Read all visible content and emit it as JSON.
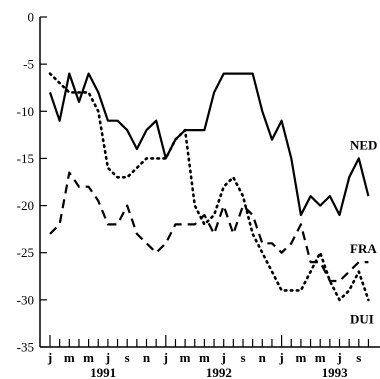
{
  "chart_data": {
    "type": "line",
    "title": "",
    "xlabel": "",
    "ylabel": "",
    "ylim": [
      -35,
      0
    ],
    "y_ticks": [
      0,
      -5,
      -10,
      -15,
      -20,
      -25,
      -30,
      -35
    ],
    "y_tick_labels": [
      "0",
      "-5",
      "-10",
      "-15",
      "-20",
      "-25",
      "-30",
      "-35"
    ],
    "month_labels": [
      "j",
      "m",
      "m",
      "j",
      "s",
      "n",
      "j",
      "m",
      "m",
      "j",
      "s",
      "n",
      "j",
      "m",
      "m",
      "j",
      "s"
    ],
    "year_labels": [
      "1991",
      "1992",
      "1993"
    ],
    "grid": false,
    "legend": "inline-right",
    "series": [
      {
        "name": "NED",
        "style": "solid",
        "color": "#000000",
        "values": [
          -8,
          -11,
          -6,
          -9,
          -6,
          -8,
          -11,
          -11,
          -12,
          -14,
          -12,
          -11,
          -15,
          -13,
          -12,
          -12,
          -12,
          -8,
          -6,
          -6,
          -6,
          -6,
          -10,
          -13,
          -11,
          -15,
          -21,
          -19,
          -20,
          -19,
          -21,
          -17,
          -15,
          -19
        ]
      },
      {
        "name": "FRA",
        "style": "dashed",
        "color": "#000000",
        "values": [
          -23,
          -22,
          -16.5,
          -18,
          -18,
          -19.5,
          -22,
          -22,
          -20,
          -23,
          -24,
          -25,
          -24,
          -22,
          -22,
          -22,
          -21,
          -23,
          -20,
          -23,
          -20,
          -21,
          -24,
          -24,
          -25,
          -24,
          -22,
          -26,
          -26,
          -28,
          -28,
          -27,
          -26,
          -26
        ]
      },
      {
        "name": "DUI",
        "style": "dotted",
        "color": "#000000",
        "values": [
          -6,
          -7,
          -8,
          -8,
          -8,
          -10,
          -16,
          -17,
          -17,
          -16,
          -15,
          -15,
          -15,
          -13,
          -12,
          -20,
          -22,
          -21,
          -18,
          -17,
          -19,
          -23,
          -25,
          -27,
          -29,
          -29,
          -29,
          -27,
          -25,
          -28,
          -30,
          -29,
          -27,
          -30
        ]
      }
    ]
  }
}
